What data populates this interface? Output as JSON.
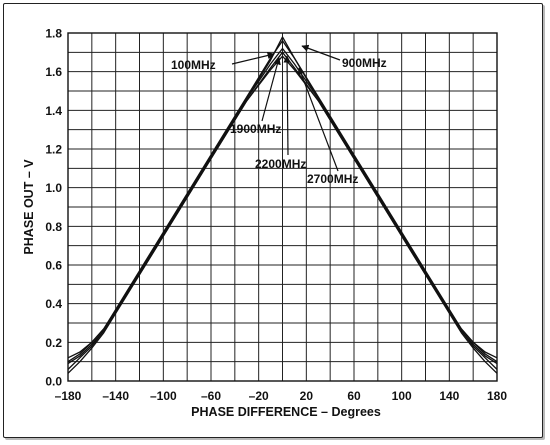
{
  "chart_data": {
    "type": "line",
    "xlabel": "PHASE DIFFERENCE – Degrees",
    "ylabel": "PHASE OUT – V",
    "xlim": [
      -180,
      180
    ],
    "ylim": [
      0,
      1.8
    ],
    "x_ticks": [
      "–180",
      "–140",
      "–100",
      "–60",
      "–20",
      "20",
      "60",
      "100",
      "140",
      "180"
    ],
    "x_tick_values": [
      -180,
      -140,
      -100,
      -60,
      -20,
      20,
      60,
      100,
      140,
      180
    ],
    "y_ticks": [
      "0.0",
      "0.2",
      "0.4",
      "0.6",
      "0.8",
      "1.0",
      "1.2",
      "1.4",
      "1.6",
      "1.8"
    ],
    "y_tick_values": [
      0,
      0.2,
      0.4,
      0.6,
      0.8,
      1.0,
      1.2,
      1.4,
      1.6,
      1.8
    ],
    "grid": true,
    "series": [
      {
        "name": "100MHz",
        "x": [
          -180,
          -170,
          -160,
          -150,
          -120,
          -90,
          -60,
          -30,
          -10,
          0,
          10,
          30,
          60,
          90,
          120,
          150,
          160,
          170,
          180
        ],
        "y": [
          0.1,
          0.14,
          0.2,
          0.27,
          0.57,
          0.87,
          1.17,
          1.47,
          1.67,
          1.76,
          1.67,
          1.47,
          1.17,
          0.87,
          0.57,
          0.27,
          0.2,
          0.14,
          0.1
        ]
      },
      {
        "name": "900MHz",
        "x": [
          -180,
          -170,
          -160,
          -150,
          -120,
          -90,
          -60,
          -30,
          -10,
          0,
          10,
          30,
          60,
          90,
          120,
          150,
          160,
          170,
          180
        ],
        "y": [
          0.12,
          0.15,
          0.2,
          0.27,
          0.56,
          0.86,
          1.16,
          1.46,
          1.66,
          1.78,
          1.67,
          1.46,
          1.16,
          0.86,
          0.56,
          0.27,
          0.2,
          0.15,
          0.12
        ]
      },
      {
        "name": "1900MHz",
        "x": [
          -180,
          -170,
          -160,
          -150,
          -120,
          -90,
          -60,
          -30,
          -10,
          0,
          10,
          30,
          60,
          90,
          120,
          150,
          160,
          170,
          180
        ],
        "y": [
          0.09,
          0.13,
          0.19,
          0.26,
          0.56,
          0.86,
          1.16,
          1.46,
          1.64,
          1.72,
          1.64,
          1.46,
          1.16,
          0.86,
          0.56,
          0.26,
          0.19,
          0.13,
          0.09
        ]
      },
      {
        "name": "2200MHz",
        "x": [
          -180,
          -170,
          -160,
          -150,
          -120,
          -90,
          -60,
          -30,
          -10,
          0,
          10,
          30,
          60,
          90,
          120,
          150,
          160,
          170,
          180
        ],
        "y": [
          0.06,
          0.12,
          0.18,
          0.26,
          0.55,
          0.85,
          1.15,
          1.45,
          1.62,
          1.7,
          1.62,
          1.45,
          1.15,
          0.85,
          0.55,
          0.26,
          0.18,
          0.12,
          0.06
        ]
      },
      {
        "name": "2700MHz",
        "x": [
          -180,
          -170,
          -160,
          -150,
          -120,
          -90,
          -60,
          -30,
          -10,
          0,
          10,
          30,
          60,
          90,
          120,
          150,
          160,
          170,
          180
        ],
        "y": [
          0.04,
          0.1,
          0.17,
          0.25,
          0.55,
          0.85,
          1.15,
          1.45,
          1.61,
          1.68,
          1.61,
          1.45,
          1.15,
          0.85,
          0.55,
          0.25,
          0.17,
          0.1,
          0.04
        ]
      }
    ],
    "annotations": [
      {
        "text": "100MHz",
        "series": "100MHz"
      },
      {
        "text": "900MHz",
        "series": "900MHz"
      },
      {
        "text": "1900MHz",
        "series": "1900MHz"
      },
      {
        "text": "2200MHz",
        "series": "2200MHz"
      },
      {
        "text": "2700MHz",
        "series": "2700MHz"
      }
    ]
  }
}
